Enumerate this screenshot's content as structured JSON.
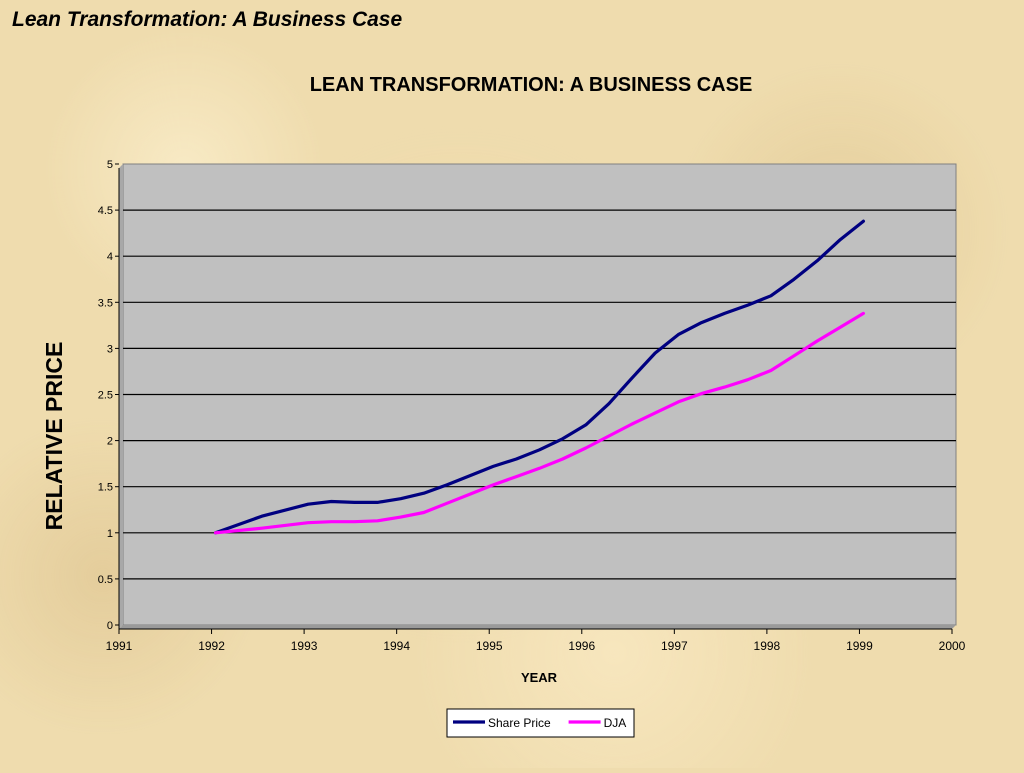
{
  "slide": {
    "title": "Lean Transformation: A Business Case"
  },
  "chart_data": {
    "type": "line",
    "title": "LEAN TRANSFORMATION: A BUSINESS CASE",
    "xlabel": "YEAR",
    "ylabel": "RELATIVE PRICE",
    "xlim": [
      1991,
      2000
    ],
    "ylim": [
      0,
      5
    ],
    "xticks": [
      1991,
      1992,
      1993,
      1994,
      1995,
      1996,
      1997,
      1998,
      1999,
      2000
    ],
    "yticks": [
      0,
      0.5,
      1,
      1.5,
      2,
      2.5,
      3,
      3.5,
      4,
      4.5,
      5
    ],
    "grid": true,
    "legend": "bottom",
    "plot_background": "#c0c0c0",
    "series": [
      {
        "name": "Share Price",
        "color": "#000080",
        "x": [
          1992,
          1992.5,
          1993,
          1993.25,
          1993.5,
          1993.75,
          1994,
          1994.25,
          1994.5,
          1994.75,
          1995,
          1995.25,
          1995.5,
          1995.75,
          1996,
          1996.25,
          1996.5,
          1996.75,
          1997,
          1997.25,
          1997.5,
          1997.75,
          1998,
          1998.25,
          1998.5,
          1998.75,
          1999
        ],
        "y": [
          1.0,
          1.18,
          1.31,
          1.34,
          1.33,
          1.33,
          1.37,
          1.43,
          1.52,
          1.62,
          1.72,
          1.8,
          1.9,
          2.02,
          2.17,
          2.4,
          2.68,
          2.95,
          3.15,
          3.28,
          3.38,
          3.47,
          3.57,
          3.75,
          3.95,
          4.18,
          4.38
        ]
      },
      {
        "name": "DJA",
        "color": "#ff00ff",
        "x": [
          1992,
          1992.5,
          1993,
          1993.25,
          1993.5,
          1993.75,
          1994,
          1994.25,
          1994.5,
          1994.75,
          1995,
          1995.25,
          1995.5,
          1995.75,
          1996,
          1996.25,
          1996.5,
          1996.75,
          1997,
          1997.25,
          1997.5,
          1997.75,
          1998,
          1998.25,
          1998.5,
          1998.75,
          1999
        ],
        "y": [
          1.0,
          1.05,
          1.11,
          1.12,
          1.12,
          1.13,
          1.17,
          1.22,
          1.32,
          1.42,
          1.52,
          1.61,
          1.7,
          1.8,
          1.92,
          2.05,
          2.18,
          2.3,
          2.42,
          2.51,
          2.58,
          2.66,
          2.76,
          2.92,
          3.08,
          3.23,
          3.38
        ]
      }
    ]
  }
}
